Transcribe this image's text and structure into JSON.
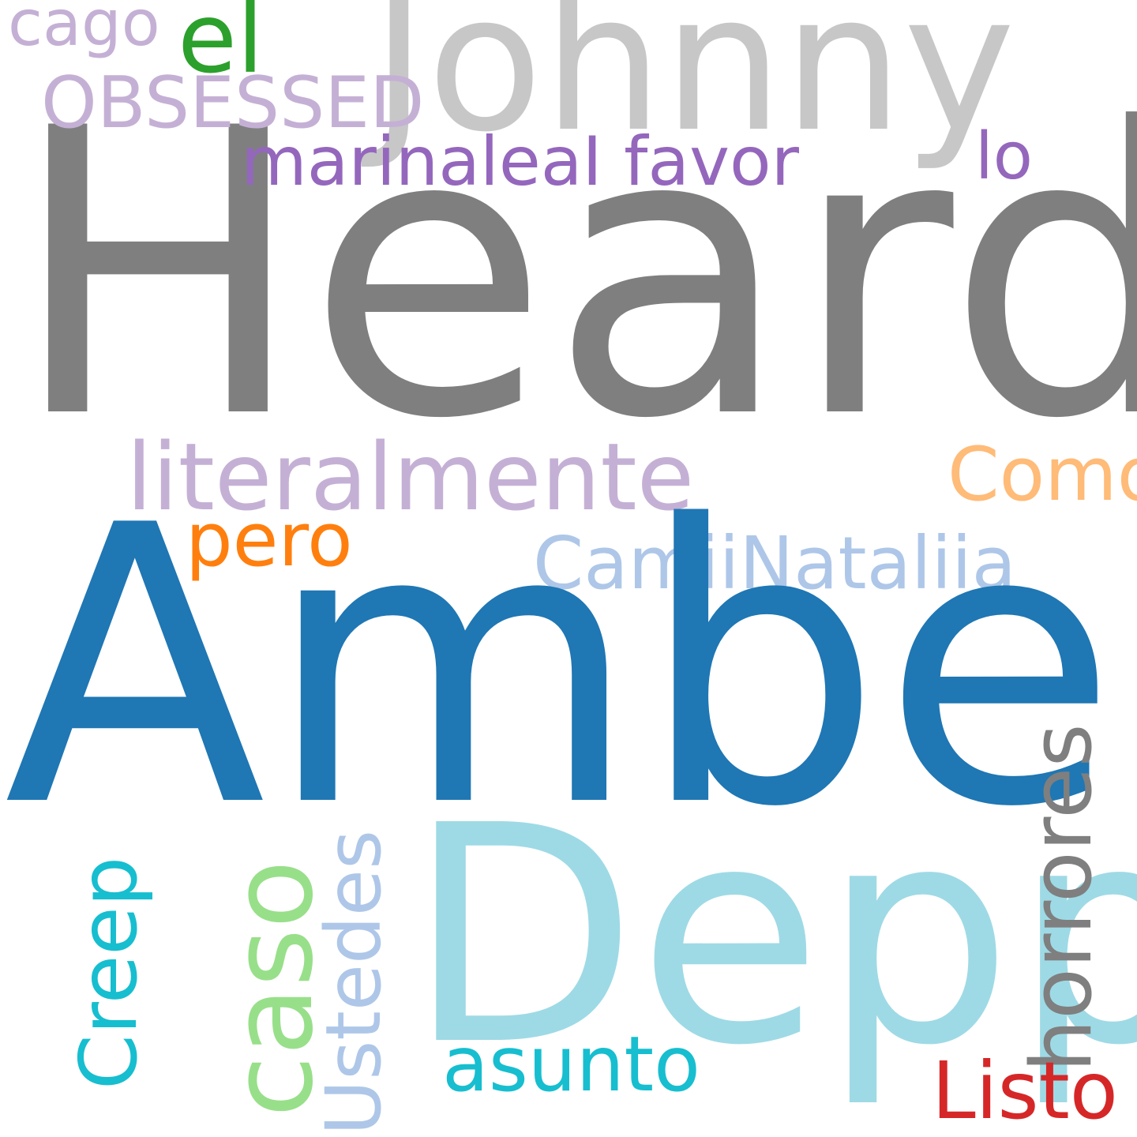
{
  "cloud": {
    "background": "#ffffff",
    "words": {
      "heard": {
        "text": "Heard",
        "color": "#7f7f7f"
      },
      "amber": {
        "text": "Amber",
        "color": "#1f77b4"
      },
      "johnny": {
        "text": "Johnny",
        "color": "#c7c7c7"
      },
      "depp": {
        "text": "Depp",
        "color": "#9edae5"
      },
      "literalmente": {
        "text": "literalmente",
        "color": "#c5b0d5"
      },
      "camii": {
        "text": "CamiiNataliia_",
        "color": "#aec7e8"
      },
      "marina": {
        "text": "marinaleaI",
        "color": "#9467bd"
      },
      "favor": {
        "text": "favor",
        "color": "#9467bd"
      },
      "obsessed": {
        "text": "OBSESSED",
        "color": "#c5b0d5"
      },
      "cago": {
        "text": "cago",
        "color": "#c5b0d5"
      },
      "el": {
        "text": "el",
        "color": "#2ca02c"
      },
      "lo": {
        "text": "lo",
        "color": "#9467bd"
      },
      "como": {
        "text": "Como",
        "color": "#ffbb78"
      },
      "pero": {
        "text": "pero",
        "color": "#ff7f0e"
      },
      "caso": {
        "text": "caso",
        "color": "#98df8a"
      },
      "ustedes": {
        "text": "Ustedes",
        "color": "#aec7e8"
      },
      "creep": {
        "text": "Creep",
        "color": "#17becf"
      },
      "asunto": {
        "text": "asunto",
        "color": "#17becf"
      },
      "horrores": {
        "text": "horrores",
        "color": "#7f7f7f"
      },
      "listo": {
        "text": "Listo",
        "color": "#d62728"
      }
    }
  }
}
